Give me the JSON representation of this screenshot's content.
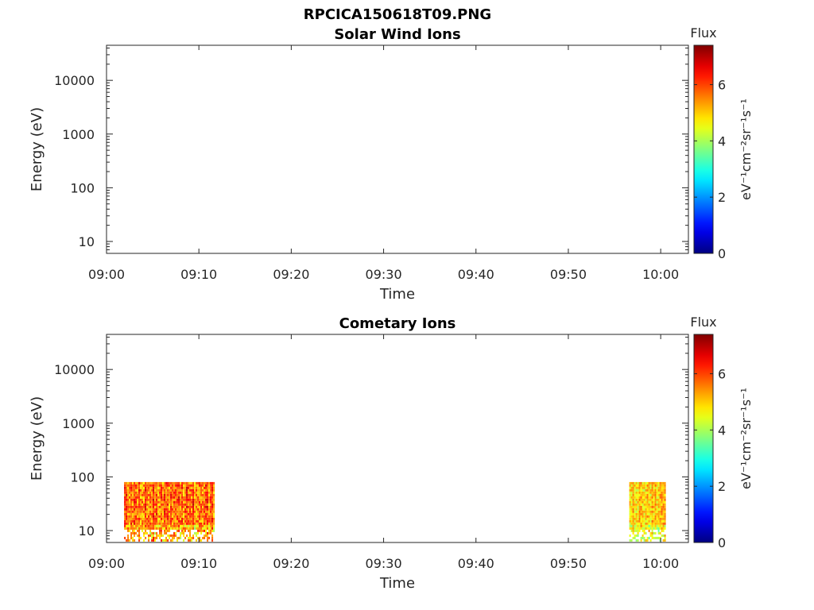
{
  "figure": {
    "title": "RPCICA150618T09.PNG"
  },
  "chart_data": [
    {
      "type": "heatmap",
      "title": "Solar Wind Ions",
      "xlabel": "Time",
      "ylabel": "Energy (eV)",
      "x_tick_labels": [
        "09:00",
        "09:10",
        "09:20",
        "09:30",
        "09:40",
        "09:50",
        "10:00"
      ],
      "x_ticks_min": [
        0,
        10,
        20,
        30,
        40,
        50,
        60
      ],
      "xlim_min": [
        0,
        63
      ],
      "y_tick_labels": [
        "10",
        "100",
        "1000",
        "10000"
      ],
      "y_ticks": [
        10,
        100,
        1000,
        10000
      ],
      "ylim": [
        6,
        45000
      ],
      "y_scale": "log",
      "colorbar": {
        "label": "Flux",
        "unit_label": "eV⁻¹cm⁻²sr⁻¹s⁻¹",
        "range": [
          0,
          7.4
        ],
        "tick_labels": [
          "0",
          "2",
          "4",
          "6"
        ],
        "ticks": [
          0,
          2,
          4,
          6
        ],
        "colormap": "jet"
      },
      "data_regions": []
    },
    {
      "type": "heatmap",
      "title": "Cometary Ions",
      "xlabel": "Time",
      "ylabel": "Energy (eV)",
      "x_tick_labels": [
        "09:00",
        "09:10",
        "09:20",
        "09:30",
        "09:40",
        "09:50",
        "10:00"
      ],
      "x_ticks_min": [
        0,
        10,
        20,
        30,
        40,
        50,
        60
      ],
      "xlim_min": [
        0,
        63
      ],
      "y_tick_labels": [
        "10",
        "100",
        "1000",
        "10000"
      ],
      "y_ticks": [
        10,
        100,
        1000,
        10000
      ],
      "ylim": [
        6,
        45000
      ],
      "y_scale": "log",
      "colorbar": {
        "label": "Flux",
        "unit_label": "eV⁻¹cm⁻²sr⁻¹s⁻¹",
        "range": [
          0,
          7.4
        ],
        "tick_labels": [
          "0",
          "2",
          "4",
          "6"
        ],
        "ticks": [
          0,
          2,
          4,
          6
        ],
        "colormap": "jet"
      },
      "data_regions": [
        {
          "t_start_min": 1.9,
          "t_end_min": 11.6,
          "e_min": 6.5,
          "e_max": 80,
          "flux_range": [
            4.5,
            7.0
          ]
        },
        {
          "t_start_min": 56.6,
          "t_end_min": 60.5,
          "e_min": 6.5,
          "e_max": 80,
          "flux_range": [
            4.0,
            6.0
          ]
        }
      ]
    }
  ]
}
